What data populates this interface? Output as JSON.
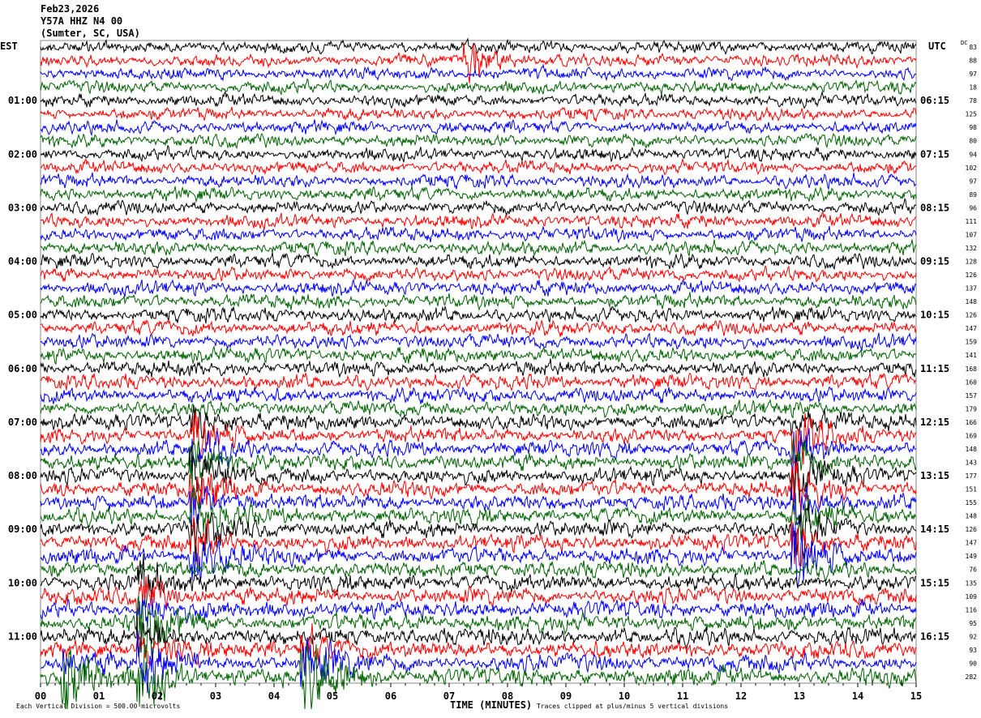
{
  "header": {
    "date": "Feb23,2026",
    "station": "Y57A HHZ N4 00",
    "location": "(Sumter, SC, USA)"
  },
  "chart_data": {
    "type": "line",
    "subtype": "helicorder",
    "left_timezone": "EST",
    "right_timezone": "UTC",
    "dc_label": "DC",
    "left_labels": [
      "01:00",
      "02:00",
      "03:00",
      "04:00",
      "05:00",
      "06:00",
      "07:00",
      "08:00",
      "09:00",
      "10:00",
      "11:00"
    ],
    "right_labels": [
      "06:15",
      "07:15",
      "08:15",
      "09:15",
      "10:15",
      "11:15",
      "12:15",
      "13:15",
      "14:15",
      "15:15",
      "16:15"
    ],
    "dc_offsets": [
      83,
      88,
      97,
      18,
      78,
      125,
      98,
      80,
      94,
      102,
      97,
      89,
      96,
      111,
      107,
      132,
      128,
      126,
      137,
      148,
      126,
      147,
      159,
      141,
      168,
      160,
      157,
      179,
      166,
      169,
      148,
      143,
      177,
      151,
      155,
      148,
      126,
      147,
      149,
      76,
      135,
      109,
      116,
      95,
      92,
      93,
      90,
      282
    ],
    "x_ticks": [
      "00",
      "01",
      "02",
      "03",
      "04",
      "05",
      "06",
      "07",
      "08",
      "09",
      "10",
      "11",
      "12",
      "13",
      "14",
      "15"
    ],
    "xlabel": "TIME (MINUTES)",
    "xlim": [
      0,
      15
    ],
    "trace_colors": [
      "#000000",
      "#ff0000",
      "#0000ff",
      "#006400"
    ],
    "footer_left": "Each Vertical Division =  500.00 microvolts",
    "footer_right": "Traces clipped at plus/minus 5 vertical divisions",
    "events": [
      {
        "minute": 2.6,
        "rows": [
          28,
          38
        ],
        "amp": 3.5
      },
      {
        "minute": 12.9,
        "rows": [
          28,
          38
        ],
        "amp": 3.5
      },
      {
        "minute": 1.7,
        "rows": [
          40,
          47
        ],
        "amp": 3
      },
      {
        "minute": 4.5,
        "rows": [
          45,
          47
        ],
        "amp": 4
      },
      {
        "minute": 0.4,
        "rows": [
          46,
          47
        ],
        "amp": 3
      },
      {
        "minute": 7.3,
        "rows": [
          1,
          1
        ],
        "amp": 3
      }
    ]
  }
}
